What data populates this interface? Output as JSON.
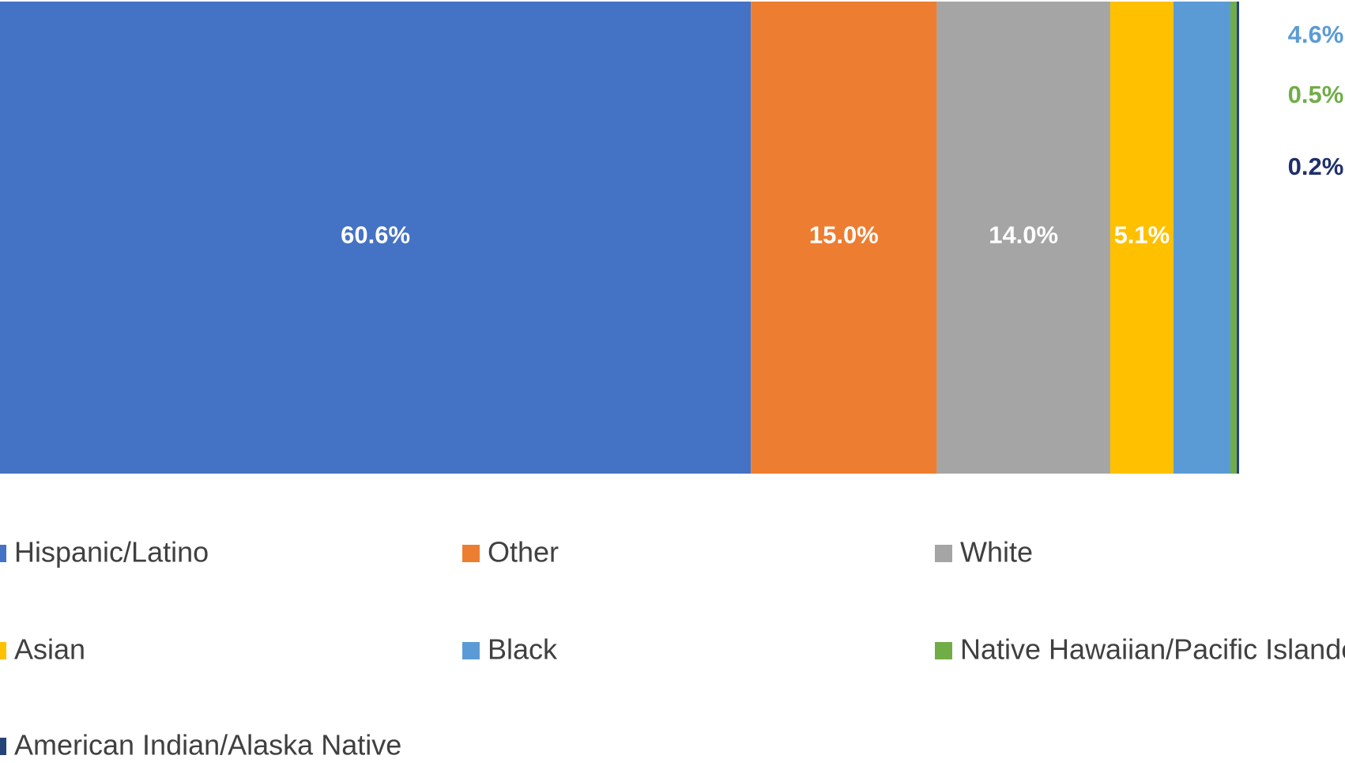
{
  "chart_data": {
    "type": "stacked_bar",
    "orientation": "horizontal",
    "categories": [
      null
    ],
    "xlim": [
      0,
      100
    ],
    "legend": "bottom",
    "series": [
      {
        "name": "Hispanic/Latino",
        "color": "#4472c4",
        "values": [
          60.6
        ],
        "value_labels": [
          "60.6%"
        ]
      },
      {
        "name": "Other",
        "color": "#ed7d31",
        "values": [
          15.0
        ],
        "value_labels": [
          "15.0%"
        ]
      },
      {
        "name": "White",
        "color": "#a5a5a5",
        "values": [
          14.0
        ],
        "value_labels": [
          "14.0%"
        ]
      },
      {
        "name": "Asian",
        "color": "#ffc000",
        "values": [
          5.1
        ],
        "value_labels": [
          "5.1%"
        ]
      },
      {
        "name": "Black",
        "color": "#5b9bd5",
        "values": [
          4.6
        ],
        "value_labels": [
          "4.6%"
        ]
      },
      {
        "name": "Native Hawaiian/Pacific Islander",
        "color": "#70ad47",
        "values": [
          0.5
        ],
        "value_labels": [
          "0.5%"
        ]
      },
      {
        "name": "American Indian/Alaska Native",
        "color": "#264478",
        "values": [
          0.2
        ],
        "value_labels": [
          "0.2%"
        ]
      }
    ]
  }
}
